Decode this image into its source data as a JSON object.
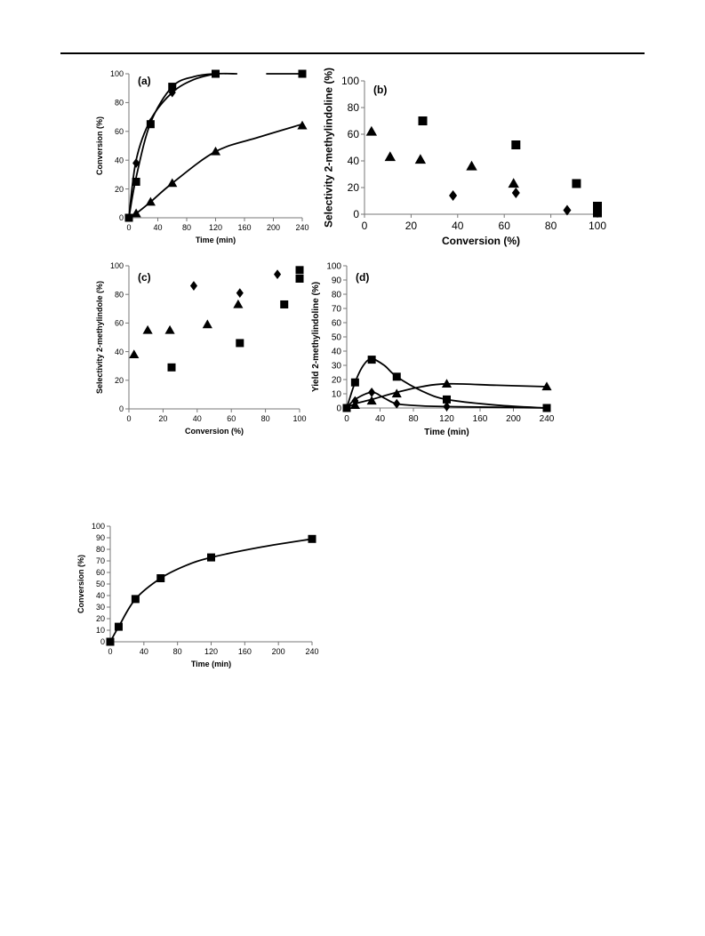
{
  "chart_data": [
    {
      "id": "a",
      "type": "scatter",
      "panel_label": "(a)",
      "xlabel": "Time (min)",
      "ylabel": "Conversion (%)",
      "xlim": [
        0,
        240
      ],
      "ylim": [
        0,
        100
      ],
      "xticks": [
        "0",
        "40",
        "80",
        "120",
        "160",
        "200",
        "240"
      ],
      "yticks": [
        "0",
        "20",
        "40",
        "60",
        "80",
        "100"
      ],
      "series": [
        {
          "marker": "square",
          "x": [
            0,
            10,
            30,
            60,
            120,
            240
          ],
          "y": [
            0,
            25,
            65,
            91,
            100,
            100
          ],
          "curve": [
            [
              0,
              0
            ],
            [
              10,
              28
            ],
            [
              30,
              66
            ],
            [
              60,
              91
            ],
            [
              90,
              98
            ],
            [
              120,
              100
            ],
            [
              150,
              100
            ]
          ],
          "curve2": [
            [
              190,
              100
            ],
            [
              240,
              100
            ]
          ]
        },
        {
          "marker": "diamond",
          "x": [
            10,
            30,
            60
          ],
          "y": [
            38,
            66,
            87
          ],
          "curve": [
            [
              0,
              0
            ],
            [
              10,
              40
            ],
            [
              30,
              68
            ],
            [
              60,
              87
            ],
            [
              90,
              96
            ],
            [
              120,
              100
            ]
          ]
        },
        {
          "marker": "triangle",
          "x": [
            10,
            30,
            60,
            120,
            240
          ],
          "y": [
            3,
            11,
            24,
            46,
            64
          ],
          "curve": [
            [
              0,
              0
            ],
            [
              10,
              3
            ],
            [
              30,
              11
            ],
            [
              60,
              24
            ],
            [
              120,
              46
            ],
            [
              180,
              56
            ],
            [
              240,
              65
            ]
          ]
        }
      ]
    },
    {
      "id": "b",
      "type": "scatter",
      "panel_label": "(b)",
      "xlabel": "Conversion (%)",
      "ylabel": "Selectivity 2-methylindoline (%)",
      "xlim": [
        0,
        100
      ],
      "ylim": [
        0,
        100
      ],
      "xticks": [
        "0",
        "20",
        "40",
        "60",
        "80",
        "100"
      ],
      "yticks": [
        "0",
        "20",
        "40",
        "60",
        "80",
        "100"
      ],
      "series": [
        {
          "marker": "square",
          "x": [
            25,
            65,
            91,
            100,
            100
          ],
          "y": [
            70,
            52,
            23,
            6,
            1
          ]
        },
        {
          "marker": "diamond",
          "x": [
            38,
            65,
            87
          ],
          "y": [
            14,
            16,
            3
          ]
        },
        {
          "marker": "triangle",
          "x": [
            3,
            11,
            24,
            46,
            64
          ],
          "y": [
            62,
            43,
            41,
            36,
            23
          ]
        }
      ]
    },
    {
      "id": "c",
      "type": "scatter",
      "panel_label": "(c)",
      "xlabel": "Conversion (%)",
      "ylabel": "Selectivity 2-methylindole (%)",
      "xlim": [
        0,
        100
      ],
      "ylim": [
        0,
        100
      ],
      "xticks": [
        "0",
        "20",
        "40",
        "60",
        "80",
        "100"
      ],
      "yticks": [
        "0",
        "20",
        "40",
        "60",
        "80",
        "100"
      ],
      "series": [
        {
          "marker": "square",
          "x": [
            25,
            65,
            91,
            100,
            100
          ],
          "y": [
            29,
            46,
            73,
            97,
            91
          ]
        },
        {
          "marker": "diamond",
          "x": [
            38,
            65,
            87
          ],
          "y": [
            86,
            81,
            94
          ]
        },
        {
          "marker": "triangle",
          "x": [
            3,
            11,
            24,
            46,
            64
          ],
          "y": [
            38,
            55,
            55,
            59,
            73
          ]
        }
      ]
    },
    {
      "id": "d",
      "type": "scatter",
      "panel_label": "(d)",
      "xlabel": "Time (min)",
      "ylabel": "Yield 2-methylindoline (%)",
      "xlim": [
        0,
        240
      ],
      "ylim": [
        0,
        100
      ],
      "xticks": [
        "0",
        "40",
        "80",
        "120",
        "160",
        "200",
        "240"
      ],
      "yticks": [
        "0",
        "10",
        "20",
        "30",
        "40",
        "50",
        "60",
        "70",
        "80",
        "90",
        "100"
      ],
      "series": [
        {
          "marker": "square",
          "x": [
            0,
            10,
            30,
            60,
            120,
            240
          ],
          "y": [
            0,
            18,
            34,
            22,
            6,
            0
          ],
          "curve": [
            [
              0,
              0
            ],
            [
              10,
              18
            ],
            [
              20,
              30
            ],
            [
              30,
              34.5
            ],
            [
              45,
              30
            ],
            [
              60,
              22
            ],
            [
              90,
              12
            ],
            [
              120,
              6
            ],
            [
              180,
              2
            ],
            [
              240,
              0
            ]
          ]
        },
        {
          "marker": "diamond",
          "x": [
            10,
            30,
            60,
            120
          ],
          "y": [
            5,
            11,
            3,
            1
          ],
          "curve": [
            [
              0,
              0
            ],
            [
              10,
              6
            ],
            [
              30,
              11
            ],
            [
              45,
              7
            ],
            [
              60,
              3
            ],
            [
              90,
              1.5
            ],
            [
              120,
              1
            ],
            [
              180,
              0.5
            ],
            [
              240,
              0
            ]
          ]
        },
        {
          "marker": "triangle",
          "x": [
            10,
            30,
            60,
            120,
            240
          ],
          "y": [
            2,
            5,
            10,
            17,
            15
          ],
          "curve": [
            [
              0,
              0
            ],
            [
              10,
              3
            ],
            [
              30,
              6
            ],
            [
              60,
              11
            ],
            [
              90,
              15
            ],
            [
              120,
              17
            ],
            [
              180,
              16
            ],
            [
              240,
              15
            ]
          ]
        }
      ]
    },
    {
      "id": "e",
      "type": "line",
      "panel_label": "",
      "xlabel": "Time (min)",
      "ylabel": "Conversion (%)",
      "xlim": [
        0,
        240
      ],
      "ylim": [
        0,
        100
      ],
      "xticks": [
        "0",
        "40",
        "80",
        "120",
        "160",
        "200",
        "240"
      ],
      "yticks": [
        "0",
        "10",
        "20",
        "30",
        "40",
        "50",
        "60",
        "70",
        "80",
        "90",
        "100"
      ],
      "series": [
        {
          "marker": "square",
          "x": [
            0,
            10,
            30,
            60,
            120,
            240
          ],
          "y": [
            0,
            13,
            37,
            55,
            73,
            89
          ],
          "curve": [
            [
              0,
              0
            ],
            [
              10,
              13
            ],
            [
              30,
              37
            ],
            [
              60,
              55
            ],
            [
              90,
              66
            ],
            [
              120,
              73
            ],
            [
              180,
              82
            ],
            [
              240,
              89
            ]
          ]
        }
      ]
    }
  ]
}
